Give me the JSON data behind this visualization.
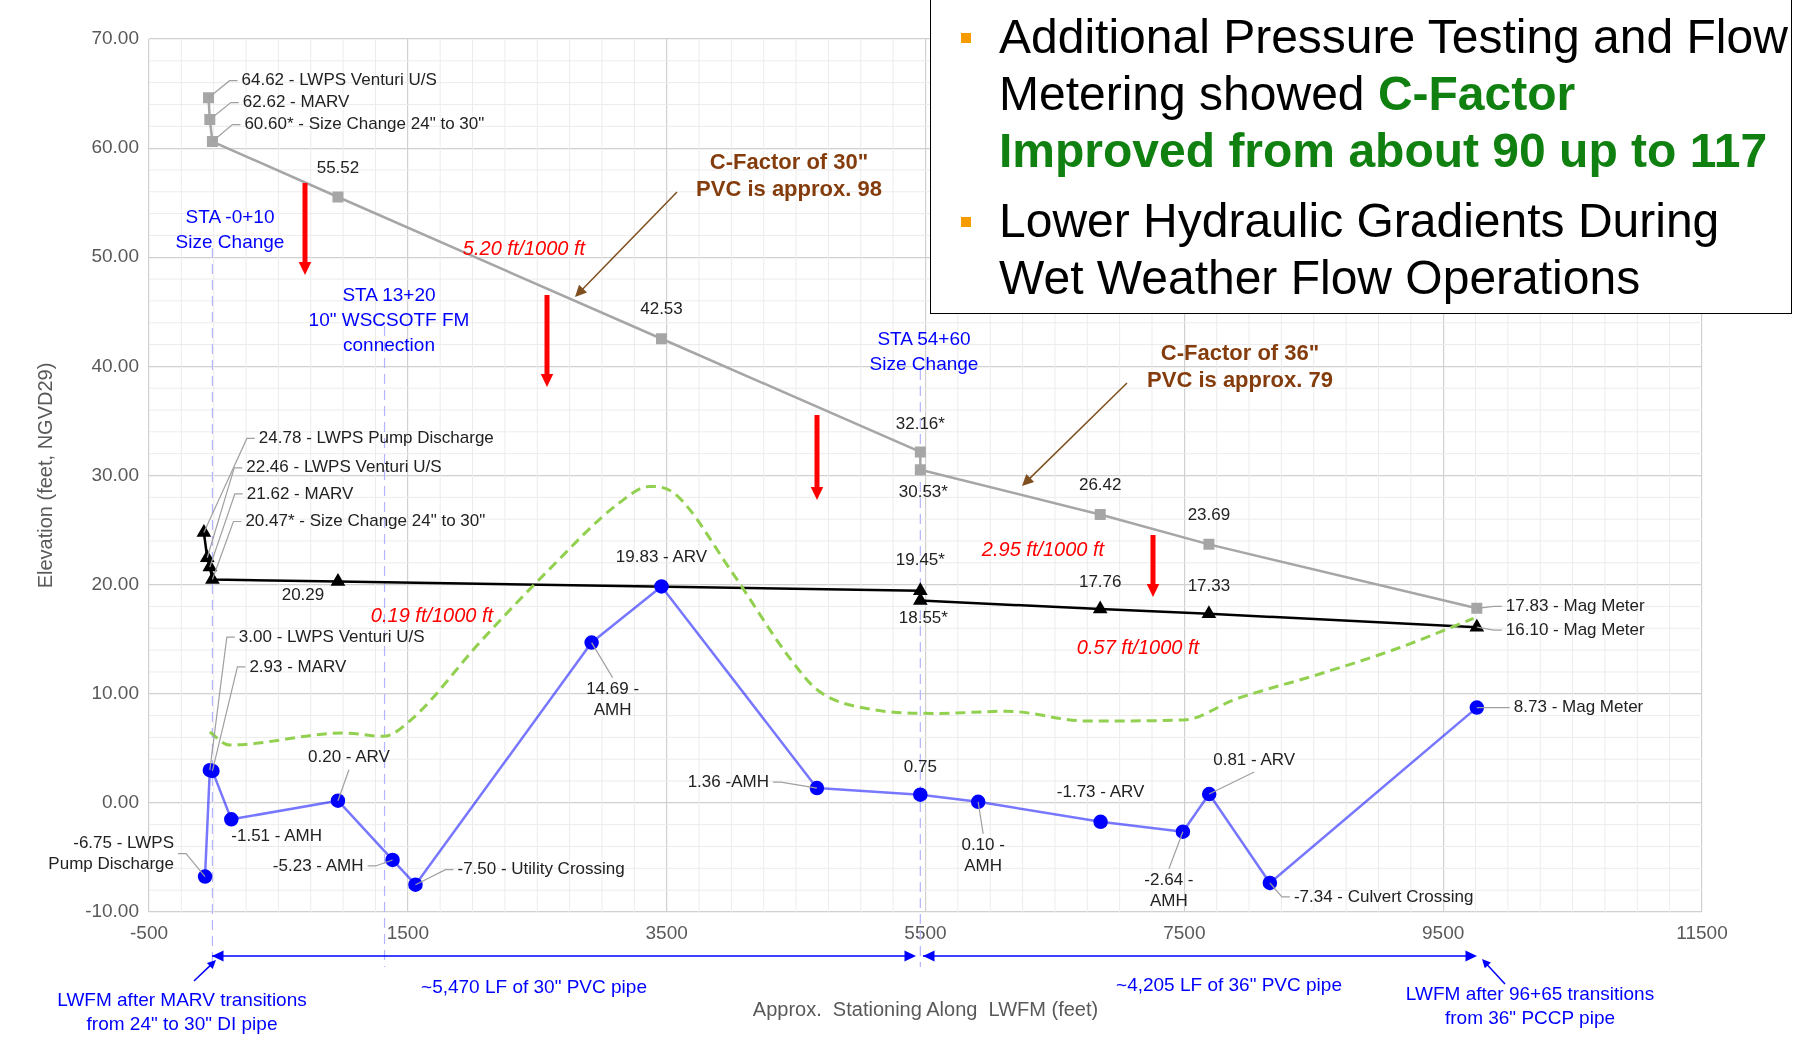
{
  "chart_data": {
    "type": "line",
    "xlabel": "Approx.  Stationing Along  LWFM (feet)",
    "ylabel": "Elevation (feet, NGVD29)",
    "xlim": [
      -500,
      11500
    ],
    "xticks": [
      -500,
      1500,
      3500,
      5500,
      7500,
      9500,
      11500
    ],
    "ylim": [
      -10,
      70
    ],
    "yticks": [
      {
        "value": -10,
        "label": "-10.00"
      },
      {
        "value": 0,
        "label": "0.00"
      },
      {
        "value": 10,
        "label": "10.00"
      },
      {
        "value": 20,
        "label": "20.00"
      },
      {
        "value": 30,
        "label": "30.00"
      },
      {
        "value": 40,
        "label": "40.00"
      },
      {
        "value": 50,
        "label": "50.00"
      },
      {
        "value": 60,
        "label": "60.00"
      },
      {
        "value": 70,
        "label": "70.00"
      }
    ],
    "grid": true,
    "series": [
      {
        "color": "#a6a6a6",
        "marker": "square",
        "x": [
          -40,
          -30,
          -10,
          960,
          3460,
          5460,
          5460,
          6850,
          7690,
          9760
        ],
        "values": [
          64.62,
          62.62,
          60.6,
          55.52,
          42.53,
          32.16,
          30.53,
          26.42,
          23.69,
          17.83
        ],
        "value_labels": [
          "64.62 - LWPS Venturi U/S",
          "62.62 - MARV",
          "60.60* - Size Change 24\" to 30\"",
          "55.52",
          "42.53",
          "32.16*",
          "30.53*",
          "26.42",
          "23.69",
          "17.83 - Mag Meter"
        ]
      },
      {
        "color": "#000000",
        "marker": "triangle",
        "x": [
          -76,
          -50,
          -30,
          -10,
          960,
          5460,
          5460,
          6850,
          7690,
          9760
        ],
        "values": [
          24.78,
          22.46,
          21.62,
          20.47,
          20.29,
          19.45,
          18.55,
          17.76,
          17.33,
          16.1
        ],
        "value_labels": [
          "24.78 - LWPS Pump Discharge",
          "22.46 - LWPS Venturi U/S",
          "21.62 - MARV",
          "20.47* - Size Change 24\" to 30\"",
          "20.29",
          "19.45*",
          "18.55*",
          "17.76",
          "17.33",
          "16.10 - Mag Meter"
        ]
      },
      {
        "color": "#0000ff",
        "marker": "circle",
        "x": [
          -67,
          -30,
          -10,
          136,
          960,
          1382,
          1559,
          2920,
          3460,
          4661,
          5460,
          5907,
          6853,
          7489,
          7692,
          8161,
          9760
        ],
        "values": [
          -6.75,
          3.0,
          2.93,
          -1.51,
          0.2,
          -5.23,
          -7.5,
          14.69,
          19.83,
          1.36,
          0.75,
          0.1,
          -1.73,
          -2.64,
          0.81,
          -7.34,
          8.73
        ],
        "value_labels": [
          "-6.75 - LWPS\nPump Discharge",
          "3.00 - LWPS Venturi U/S",
          "2.93 - MARV",
          "-1.51 - AMH",
          "0.20 - ARV",
          "-5.23 - AMH",
          "-7.50 - Utility Crossing",
          "14.69 -\nAMH",
          "19.83 - ARV",
          "1.36 -AMH",
          "0.75",
          "0.10 -\nAMH",
          "-1.73 - ARV",
          "-2.64 -\nAMH",
          "0.81 - ARV",
          "-7.34 - Culvert Crossing",
          "8.73 - Mag Meter"
        ]
      },
      {
        "color": "#92d050",
        "marker": "none",
        "line_style": "dashed",
        "x": [
          -30,
          119,
          1003,
          1312,
          1533,
          2063,
          2593,
          3124,
          3371,
          3566,
          4007,
          4449,
          4670,
          5067,
          5597,
          6127,
          6746,
          7498,
          7896,
          8515,
          9134,
          9735
        ],
        "values": [
          6.5,
          5.3,
          6.4,
          6.1,
          7.7,
          14.8,
          21.4,
          27.4,
          29.0,
          28.3,
          21.1,
          13.3,
          10.3,
          8.6,
          8.2,
          8.4,
          7.5,
          7.6,
          9.5,
          11.7,
          14.1,
          16.9
        ]
      }
    ],
    "ref_lines": [
      {
        "axis": "x",
        "value": -10,
        "label": "STA -0+10\nSize Change",
        "color": "#b4b4ff",
        "line_style": "dashed"
      },
      {
        "axis": "x",
        "value": 1320,
        "label": "STA 13+20\n10\" WSCSOTF FM\nconnection",
        "color": "#b4b4ff",
        "line_style": "dashed"
      },
      {
        "axis": "x",
        "value": 5460,
        "label": "STA 54+60\nSize Change",
        "color": "#b4b4ff",
        "line_style": "dashed"
      }
    ],
    "annotations": [
      "5.20 ft/1000 ft",
      "0.19 ft/1000 ft",
      "2.95 ft/1000 ft",
      "0.57 ft/1000 ft",
      "C-Factor of 30\"\nPVC is approx. 98",
      "C-Factor of 36\"\nPVC is approx. 79",
      "~5,470 LF of 30\" PVC pipe",
      "~4,205 LF of 36\" PVC pipe",
      "LWFM after MARV transitions\nfrom 24\" to 30\" DI pipe",
      "LWFM after 96+65 transitions\nfrom 36\" PCCP pipe",
      "Additional Pressure Testing and Flow Metering showed",
      "C-Factor Improved from about 90 up to 117",
      "Lower Hydraulic Gradients During Wet Weather Flow Operations"
    ]
  }
}
